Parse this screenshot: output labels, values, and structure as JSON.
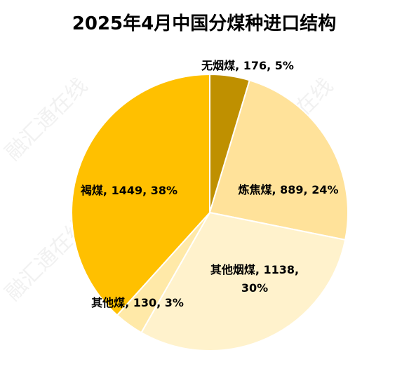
{
  "chart_data": {
    "type": "pie",
    "title": "2025年4月中国分煤种进口结构",
    "slices": [
      {
        "label": "无烟煤",
        "value": 176,
        "percent": 5,
        "color": "#bf9000",
        "text": "无烟煤, 176, 5%"
      },
      {
        "label": "炼焦煤",
        "value": 889,
        "percent": 24,
        "color": "#ffe29a",
        "text": "炼焦煤, 889, 24%"
      },
      {
        "label": "其他烟煤",
        "value": 1138,
        "percent": 30,
        "color": "#fff2cc",
        "text_lines": [
          "其他烟煤, 1138,",
          "30%"
        ]
      },
      {
        "label": "其他煤",
        "value": 130,
        "percent": 3,
        "color": "#ffe9a8",
        "text": "其他煤, 130, 3%"
      },
      {
        "label": "褐煤",
        "value": 1449,
        "percent": 38,
        "color": "#ffc000",
        "text": "褐煤, 1449, 38%"
      }
    ],
    "start_angle_deg": 0,
    "direction": "clockwise",
    "legend": "none",
    "watermark": "融汇通在线"
  }
}
